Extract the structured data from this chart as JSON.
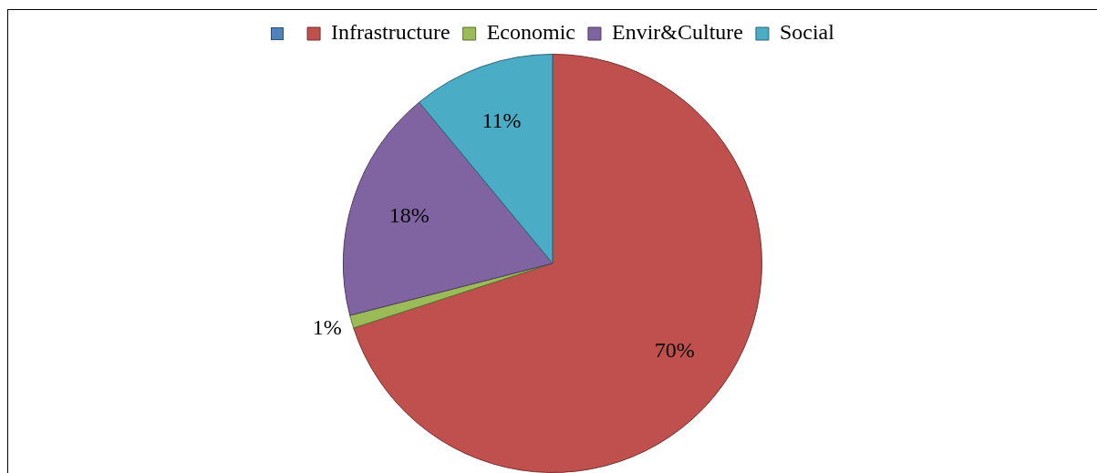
{
  "chart_data": {
    "type": "pie",
    "categories": [
      null,
      "Infrastructure",
      "Economic",
      "Envir&Culture",
      "Social"
    ],
    "values": [
      0,
      70,
      1,
      18,
      11
    ],
    "colors": [
      "#4f81bd",
      "#c0504d",
      "#9bbb59",
      "#8064a2",
      "#4bacc6"
    ],
    "value_labels": [
      null,
      "70%",
      "1%",
      "18%",
      "11%"
    ],
    "legend": "top"
  }
}
